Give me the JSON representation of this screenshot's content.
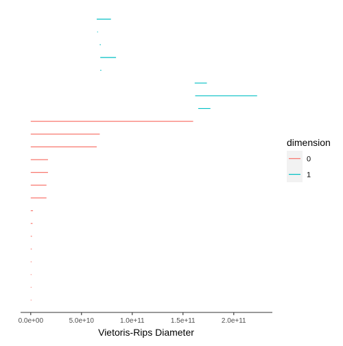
{
  "chart_data": {
    "type": "barcode",
    "xlabel": "Vietoris-Rips Diameter",
    "ylabel": "",
    "title": "",
    "xlim": [
      -10000000000.0,
      238000000000.0
    ],
    "x_ticks": [
      {
        "value": 0,
        "label": "0.0e+00"
      },
      {
        "value": 50000000000.0,
        "label": "5.0e+10"
      },
      {
        "value": 100000000000.0,
        "label": "1.0e+11"
      },
      {
        "value": 150000000000.0,
        "label": "1.5e+11"
      },
      {
        "value": 200000000000.0,
        "label": "2.0e+11"
      }
    ],
    "legend": {
      "title": "dimension",
      "position": "right",
      "entries": [
        {
          "label": "0",
          "color": "#F8766D"
        },
        {
          "label": "1",
          "color": "#00BFC4"
        }
      ]
    },
    "grid": false,
    "series": [
      {
        "name": "1",
        "color": "#00BFC4",
        "bars": [
          {
            "birth": 65000000000.0,
            "death": 79000000000.0
          },
          {
            "birth": 65500000000.0,
            "death": 66200000000.0
          },
          {
            "birth": 68000000000.0,
            "death": 69000000000.0
          },
          {
            "birth": 68500000000.0,
            "death": 84000000000.0
          },
          {
            "birth": 68500000000.0,
            "death": 69500000000.0
          },
          {
            "birth": 161500000000.0,
            "death": 173500000000.0
          },
          {
            "birth": 162000000000.0,
            "death": 223000000000.0
          },
          {
            "birth": 165000000000.0,
            "death": 177000000000.0
          }
        ]
      },
      {
        "name": "0",
        "color": "#F8766D",
        "bars": [
          {
            "birth": 0,
            "death": 160000000000.0
          },
          {
            "birth": 0,
            "death": 68000000000.0
          },
          {
            "birth": 0,
            "death": 65000000000.0
          },
          {
            "birth": 0,
            "death": 17000000000.0
          },
          {
            "birth": 0,
            "death": 17000000000.0
          },
          {
            "birth": 0,
            "death": 15500000000.0
          },
          {
            "birth": 0,
            "death": 15500000000.0
          },
          {
            "birth": 0,
            "death": 2200000000.0
          },
          {
            "birth": 0,
            "death": 1800000000.0
          },
          {
            "birth": 0,
            "death": 1200000000.0
          },
          {
            "birth": 0,
            "death": 1000000000.0
          },
          {
            "birth": 0,
            "death": 800000000.0
          },
          {
            "birth": 0,
            "death": 600000000.0
          },
          {
            "birth": 0,
            "death": 400000000.0
          },
          {
            "birth": 0,
            "death": 200000000.0
          }
        ]
      }
    ]
  }
}
